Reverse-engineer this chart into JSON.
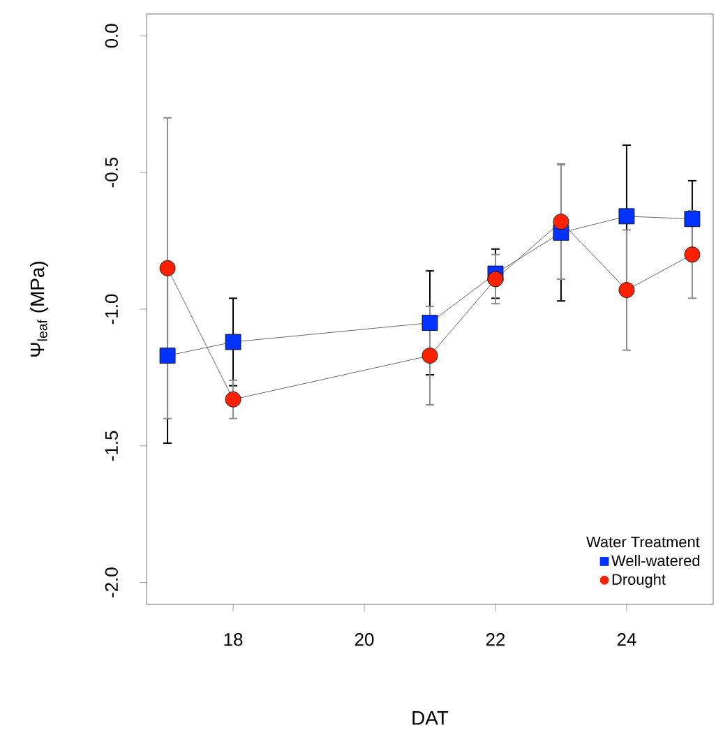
{
  "chart_data": {
    "type": "line",
    "xlabel": "DAT",
    "ylabel": "Ψ$_{leaf}$ (MPa)",
    "legend_title": "Water Treatment",
    "legend": "bottom right",
    "grid": false,
    "x": [
      17,
      18,
      21,
      22,
      23,
      24,
      25
    ],
    "xlim": [
      16.68,
      25.32
    ],
    "xticks": [
      18,
      20,
      22,
      24
    ],
    "ylim": [
      -2.08,
      0.08
    ],
    "yticks": [
      {
        "value": 0,
        "label": "0.0"
      },
      -0.5,
      {
        "value": -1,
        "label": "-1.0"
      },
      -1.5,
      {
        "value": -2,
        "label": "-2.0"
      }
    ],
    "series": [
      {
        "name": "Well-watered",
        "color": "#0033ff",
        "marker": "square",
        "values": [
          -1.17,
          -1.12,
          -1.05,
          -0.87,
          -0.72,
          -0.66,
          -0.67
        ],
        "errors": [
          0.32,
          0.16,
          0.19,
          0.09,
          0.25,
          0.26,
          0.14
        ]
      },
      {
        "name": "Drought",
        "color": "#ff2200",
        "marker": "circle",
        "values": [
          -0.85,
          -1.33,
          -1.17,
          -0.89,
          -0.68,
          -0.93,
          -0.8
        ],
        "errors": [
          0.55,
          0.07,
          0.18,
          0.09,
          0.21,
          0.22,
          0.16
        ]
      }
    ]
  }
}
